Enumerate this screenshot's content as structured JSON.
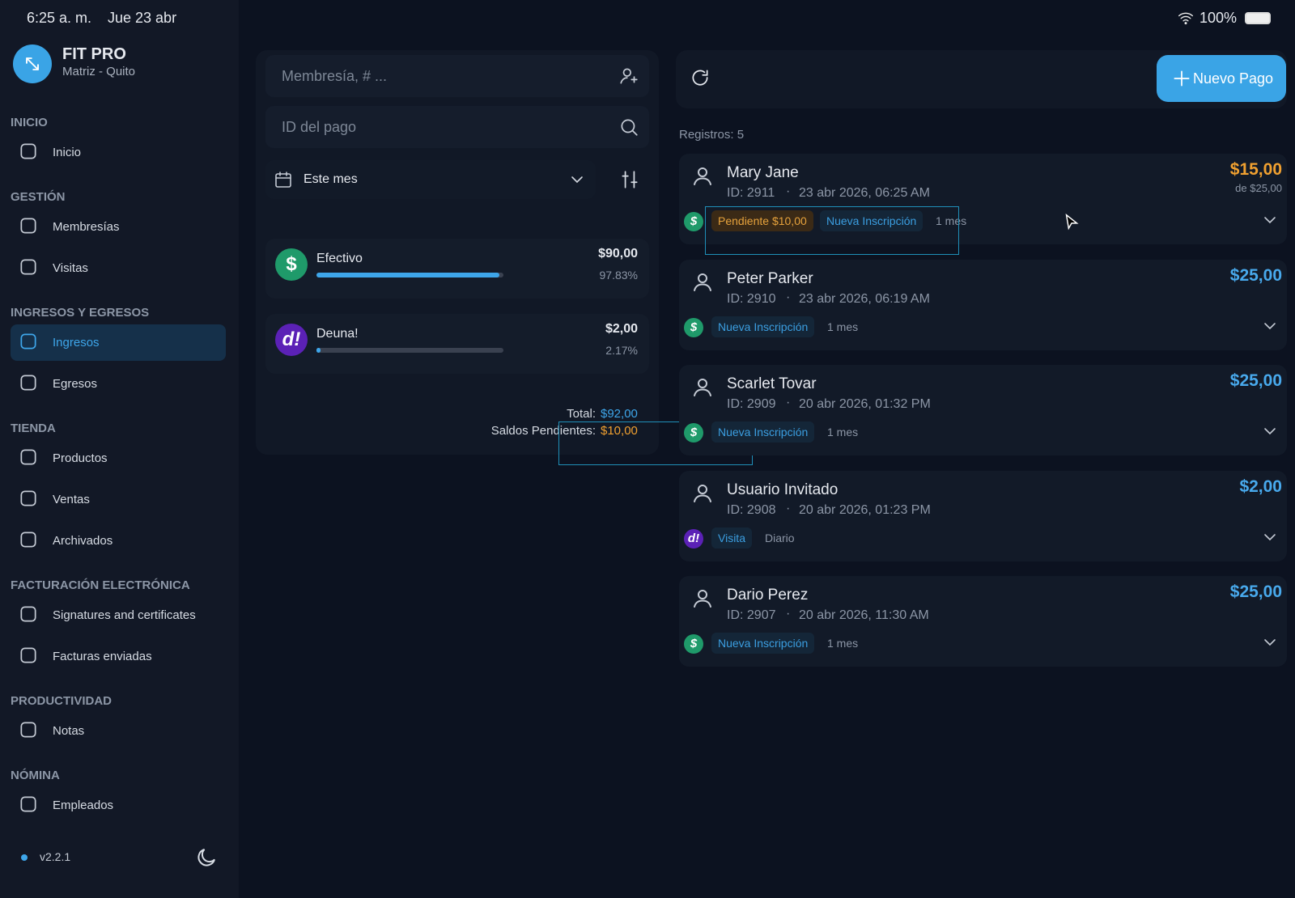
{
  "status_bar": {
    "time": "6:25 a. m.",
    "date": "Jue 23 abr",
    "battery": "100%"
  },
  "brand": {
    "name": "FIT PRO",
    "branch": "Matriz - Quito"
  },
  "nav": [
    {
      "title": "INICIO",
      "items": [
        {
          "label": "Inicio"
        }
      ]
    },
    {
      "title": "GESTIÓN",
      "items": [
        {
          "label": "Membresías"
        },
        {
          "label": "Visitas"
        }
      ]
    },
    {
      "title": "INGRESOS Y EGRESOS",
      "items": [
        {
          "label": "Ingresos",
          "active": true
        },
        {
          "label": "Egresos"
        }
      ]
    },
    {
      "title": "TIENDA",
      "items": [
        {
          "label": "Productos"
        },
        {
          "label": "Ventas"
        },
        {
          "label": "Archivados"
        }
      ]
    },
    {
      "title": "FACTURACIÓN ELECTRÓNICA",
      "items": [
        {
          "label": "Signatures and certificates"
        },
        {
          "label": "Facturas enviadas"
        }
      ]
    },
    {
      "title": "PRODUCTIVIDAD",
      "items": [
        {
          "label": "Notas"
        }
      ]
    },
    {
      "title": "NÓMINA",
      "items": [
        {
          "label": "Empleados"
        }
      ]
    }
  ],
  "version": "v2.2.1",
  "filters": {
    "member_search": "Membresía, # ...",
    "payment_search": "ID del pago",
    "period": "Este mes"
  },
  "methods": [
    {
      "icon": "$",
      "name": "Efectivo",
      "amount": "$90,00",
      "share": {
        "value": 97.83,
        "label": "97.83%"
      }
    },
    {
      "icon": "d!",
      "name": "Deuna!",
      "amount": "$2,00",
      "share": {
        "value": 2.17,
        "label": "2.17%"
      }
    }
  ],
  "totals": {
    "total_label": "Total:",
    "total": "$92,00",
    "pending_label": "Saldos Pendientes:",
    "pending": "$10,00"
  },
  "list": {
    "records": "Registros: 5",
    "new_button": "Nuevo Pago"
  },
  "payments": [
    {
      "name": "Mary Jane",
      "id": "ID: 2911",
      "date": "23 abr 2026, 06:25 AM",
      "amount": "$15,00",
      "of": "de $25,00",
      "method": "$",
      "tags": [
        "Pendiente $10,00",
        "Nueva Inscripción"
      ],
      "duration": "1 mes"
    },
    {
      "name": "Peter Parker",
      "id": "ID: 2910",
      "date": "23 abr 2026, 06:19 AM",
      "amount": "$25,00",
      "method": "$",
      "tags": [
        "Nueva Inscripción"
      ],
      "duration": "1 mes"
    },
    {
      "name": "Scarlet Tovar",
      "id": "ID: 2909",
      "date": "20 abr 2026, 01:32 PM",
      "amount": "$25,00",
      "method": "$",
      "tags": [
        "Nueva Inscripción"
      ],
      "duration": "1 mes"
    },
    {
      "name": "Usuario Invitado",
      "id": "ID: 2908",
      "date": "20 abr 2026, 01:23 PM",
      "amount": "$2,00",
      "method": "d!",
      "tags": [
        "Visita"
      ],
      "duration": "Diario"
    },
    {
      "name": "Dario Perez",
      "id": "ID: 2907",
      "date": "20 abr 2026, 11:30 AM",
      "amount": "$25,00",
      "method": "$",
      "tags": [
        "Nueva Inscripción"
      ],
      "duration": "1 mes"
    }
  ]
}
